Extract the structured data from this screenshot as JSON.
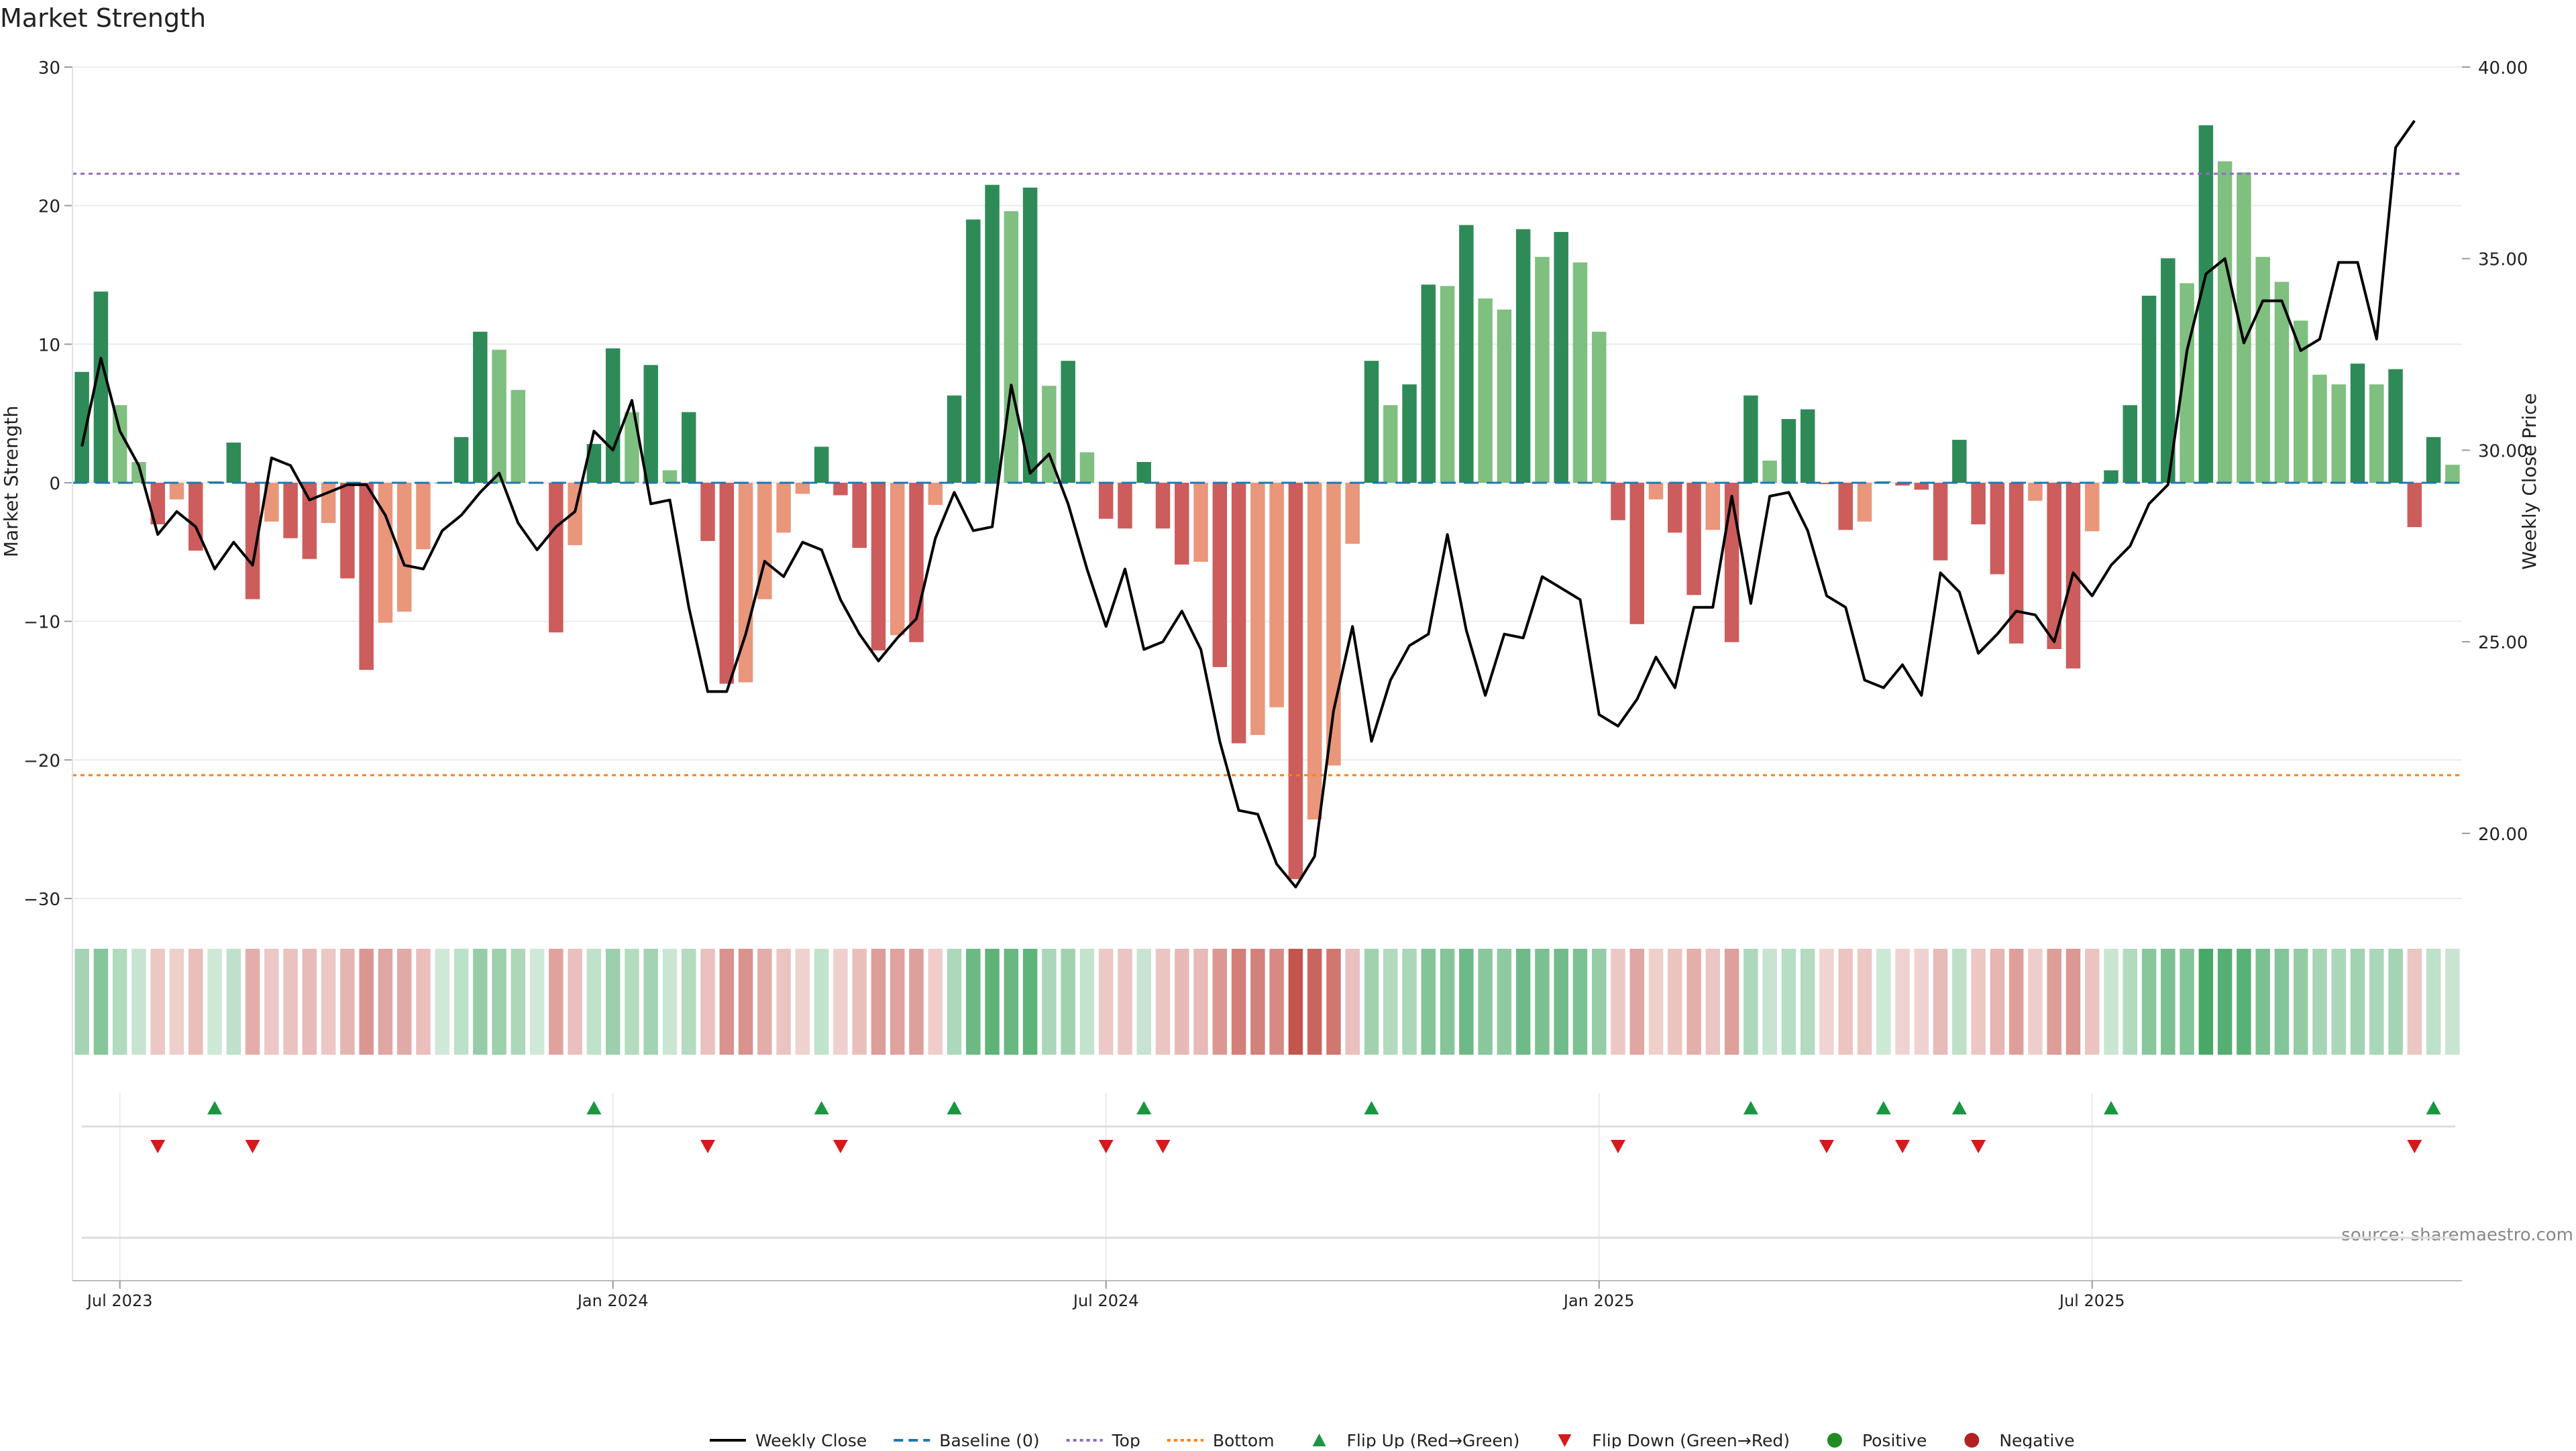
{
  "chart_data": {
    "type": "bar",
    "title": "Market Strength",
    "ylabel_left": "Market Strength",
    "ylabel_right": "Weekly Close Price",
    "ylim_left": [
      -30,
      30
    ],
    "ylim_right": [
      18.3,
      40.0
    ],
    "yticks_left": [
      "30",
      "20",
      "10",
      "0",
      "−10",
      "−20",
      "−30"
    ],
    "yticks_left_values": [
      30,
      20,
      10,
      0,
      -10,
      -20,
      -30
    ],
    "yticks_right": [
      "40.00",
      "35.00",
      "30.00",
      "25.00",
      "20.00"
    ],
    "yticks_right_values": [
      40,
      35,
      30,
      25,
      20
    ],
    "xticks": [
      {
        "label": "Jul 2023",
        "index": 2
      },
      {
        "label": "Jan 2024",
        "index": 28
      },
      {
        "label": "Jul 2024",
        "index": 54
      },
      {
        "label": "Jan 2025",
        "index": 80
      },
      {
        "label": "Jul 2025",
        "index": 106
      }
    ],
    "top_line": 22.3,
    "bottom_line": -21.1,
    "source": "source: sharemaestro.com",
    "strength": [
      8.0,
      13.8,
      5.6,
      1.5,
      -3.0,
      -1.2,
      -4.9,
      0.1,
      2.9,
      -8.4,
      -2.8,
      -4.0,
      -5.5,
      -2.9,
      -6.9,
      -13.5,
      -10.1,
      -9.3,
      -4.8,
      0,
      3.3,
      10.9,
      9.6,
      6.7,
      0,
      -10.8,
      -4.5,
      2.8,
      9.7,
      5.1,
      8.5,
      0.9,
      5.1,
      -4.2,
      -14.5,
      -14.4,
      -8.4,
      -3.6,
      -0.8,
      2.6,
      -0.9,
      -4.7,
      -12.1,
      -11.0,
      -11.5,
      -1.6,
      6.3,
      19.0,
      21.5,
      19.6,
      21.3,
      7.0,
      8.8,
      2.2,
      -2.6,
      -3.3,
      1.5,
      -3.3,
      -5.9,
      -5.7,
      -13.3,
      -18.8,
      -18.2,
      -16.2,
      -28.6,
      -24.3,
      -20.4,
      -4.4,
      8.8,
      5.6,
      7.1,
      14.3,
      14.2,
      18.6,
      13.3,
      12.5,
      18.3,
      16.3,
      18.1,
      15.9,
      10.9,
      -2.7,
      -10.2,
      -1.2,
      -3.6,
      -8.1,
      -3.4,
      -11.5,
      6.3,
      1.6,
      4.6,
      5.3,
      -0.1,
      -3.4,
      -2.8,
      0.1,
      -0.2,
      -0.5,
      -5.6,
      3.1,
      -3.0,
      -6.6,
      -11.6,
      -1.3,
      -12.0,
      -13.4,
      -3.5,
      0.9,
      5.6,
      13.5,
      16.2,
      14.4,
      25.8,
      23.2,
      22.4,
      16.3,
      14.5,
      11.7,
      7.8,
      7.1,
      8.6,
      7.1,
      8.2,
      -3.2,
      3.3,
      1.3
    ],
    "weekly_close": [
      30.1,
      32.4,
      30.5,
      29.6,
      27.8,
      28.4,
      28.0,
      26.9,
      27.6,
      27.0,
      29.8,
      29.6,
      28.7,
      28.9,
      29.1,
      29.1,
      28.3,
      27.0,
      26.9,
      27.9,
      28.3,
      28.9,
      29.4,
      28.1,
      27.4,
      28.0,
      28.4,
      30.5,
      30.0,
      31.3,
      28.6,
      28.7,
      25.9,
      23.7,
      23.7,
      25.2,
      27.1,
      26.7,
      27.6,
      27.4,
      26.1,
      25.2,
      24.5,
      25.1,
      25.6,
      27.7,
      28.9,
      27.9,
      28.0,
      31.7,
      29.4,
      29.9,
      28.6,
      26.9,
      25.4,
      26.9,
      24.8,
      25.0,
      25.8,
      24.8,
      22.4,
      20.6,
      20.5,
      19.2,
      18.6,
      19.4,
      23.2,
      25.4,
      22.4,
      24.0,
      24.9,
      25.2,
      27.8,
      25.3,
      23.6,
      25.2,
      25.1,
      26.7,
      26.4,
      26.1,
      23.1,
      22.8,
      23.5,
      24.6,
      23.8,
      25.9,
      25.9,
      28.8,
      26.0,
      28.8,
      28.9,
      27.9,
      26.2,
      25.9,
      24.0,
      23.8,
      24.4,
      23.6,
      26.8,
      26.3,
      24.7,
      25.2,
      25.8,
      25.7,
      25.0,
      26.8,
      26.2,
      27.0,
      27.5,
      28.6,
      29.1,
      32.6,
      34.6,
      35.0,
      32.8,
      33.9,
      33.9,
      32.6,
      32.9,
      34.9,
      34.9,
      32.9,
      37.9,
      38.6
    ]
  },
  "legend": {
    "weekly_close": "Weekly Close",
    "baseline": "Baseline (0)",
    "top": "Top",
    "bottom": "Bottom",
    "flip_up": "Flip Up (Red→Green)",
    "flip_down": "Flip Down (Green→Red)",
    "positive": "Positive",
    "negative": "Negative"
  },
  "colors": {
    "pos_strong": "#2e8b57",
    "pos_light": "#7fbf7f",
    "neg_strong": "#cd5c5c",
    "neg_light": "#e9967a",
    "close_line": "#000000",
    "baseline": "#1f77b4",
    "top": "#9467bd",
    "bottom": "#ff7f0e",
    "flip_up": "#1a9641",
    "flip_down": "#d7191c",
    "positive_dot": "#228b22",
    "negative_dot": "#b22222"
  }
}
